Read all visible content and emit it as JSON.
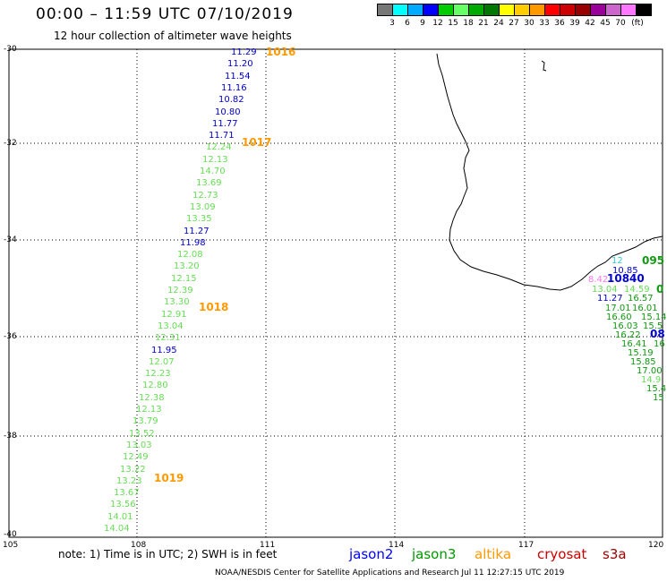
{
  "title": "00:00 – 11:59 UTC 07/10/2019",
  "subtitle": "12 hour collection of altimeter wave heights",
  "legend": {
    "unit": "(ft)",
    "items": [
      {
        "label": "",
        "color": "#777777"
      },
      {
        "label": "3",
        "color": "#00ffff"
      },
      {
        "label": "6",
        "color": "#00aaff"
      },
      {
        "label": "9",
        "color": "#0000ff"
      },
      {
        "label": "12",
        "color": "#00cc00"
      },
      {
        "label": "15",
        "color": "#66ff66"
      },
      {
        "label": "18",
        "color": "#00aa00"
      },
      {
        "label": "21",
        "color": "#007700"
      },
      {
        "label": "24",
        "color": "#ffff00"
      },
      {
        "label": "27",
        "color": "#ffcc00"
      },
      {
        "label": "30",
        "color": "#ff9900"
      },
      {
        "label": "33",
        "color": "#ff0000"
      },
      {
        "label": "36",
        "color": "#cc0000"
      },
      {
        "label": "39",
        "color": "#990000"
      },
      {
        "label": "42",
        "color": "#990099"
      },
      {
        "label": "45",
        "color": "#cc66cc"
      },
      {
        "label": "70",
        "color": "#ff77ff"
      },
      {
        "label": "",
        "color": "#000000"
      }
    ]
  },
  "axes": {
    "lat_labels": [
      "-30",
      "-32",
      "-34",
      "-36",
      "-38",
      "-40"
    ],
    "lon_labels": [
      "105",
      "108",
      "111",
      "114",
      "117",
      "120"
    ]
  },
  "pressures": [
    "1016",
    "1017",
    "1018",
    "1019"
  ],
  "west_track": [
    {
      "v": "11.29",
      "s": "blue"
    },
    {
      "v": "11.20",
      "s": "blue"
    },
    {
      "v": "11.54",
      "s": "blue"
    },
    {
      "v": "11.16",
      "s": "blue"
    },
    {
      "v": "10.82",
      "s": "blue"
    },
    {
      "v": "10.80",
      "s": "blue"
    },
    {
      "v": "11.77",
      "s": "blue"
    },
    {
      "v": "11.71",
      "s": "blue"
    },
    {
      "v": "12.24",
      "s": "lgreen"
    },
    {
      "v": "12.13",
      "s": "lgreen"
    },
    {
      "v": "14.70",
      "s": "lgreen"
    },
    {
      "v": "13.69",
      "s": "lgreen"
    },
    {
      "v": "12.73",
      "s": "lgreen"
    },
    {
      "v": "13.09",
      "s": "lgreen"
    },
    {
      "v": "13.35",
      "s": "lgreen"
    },
    {
      "v": "11.27",
      "s": "blue"
    },
    {
      "v": "11.98",
      "s": "blue"
    },
    {
      "v": "12.08",
      "s": "lgreen"
    },
    {
      "v": "13.20",
      "s": "lgreen"
    },
    {
      "v": "12.15",
      "s": "lgreen"
    },
    {
      "v": "12.39",
      "s": "lgreen"
    },
    {
      "v": "13.30",
      "s": "lgreen"
    },
    {
      "v": "12.91",
      "s": "lgreen"
    },
    {
      "v": "13.04",
      "s": "lgreen"
    },
    {
      "v": "12.31",
      "s": "lgreen"
    },
    {
      "v": "11.95",
      "s": "blue"
    },
    {
      "v": "12.07",
      "s": "lgreen"
    },
    {
      "v": "12.23",
      "s": "lgreen"
    },
    {
      "v": "12.80",
      "s": "lgreen"
    },
    {
      "v": "12.38",
      "s": "lgreen"
    },
    {
      "v": "12.13",
      "s": "lgreen"
    },
    {
      "v": "13.79",
      "s": "lgreen"
    },
    {
      "v": "13.52",
      "s": "lgreen"
    },
    {
      "v": "13.03",
      "s": "lgreen"
    },
    {
      "v": "12.49",
      "s": "lgreen"
    },
    {
      "v": "13.22",
      "s": "lgreen"
    },
    {
      "v": "13.23",
      "s": "lgreen"
    },
    {
      "v": "13.67",
      "s": "lgreen"
    },
    {
      "v": "13.56",
      "s": "lgreen"
    },
    {
      "v": "14.01",
      "s": "lgreen"
    },
    {
      "v": "14.04",
      "s": "lgreen"
    }
  ],
  "east_cluster": [
    {
      "v": "095",
      "s": "dgreen"
    },
    {
      "v": "10.85",
      "s": "blue"
    },
    {
      "v": "10840",
      "s": "blue"
    },
    {
      "v": "8.42",
      "s": "pink"
    },
    {
      "v": "13.04",
      "s": "lgreen"
    },
    {
      "v": "14.59",
      "s": "lgreen"
    },
    {
      "v": "0",
      "s": "dgreen"
    },
    {
      "v": "11.27",
      "s": "blue"
    },
    {
      "v": "16.57",
      "s": "dgreen"
    },
    {
      "v": "17.01",
      "s": "dgreen"
    },
    {
      "v": "16.01",
      "s": "dgreen"
    },
    {
      "v": "16.60",
      "s": "dgreen"
    },
    {
      "v": "15.14",
      "s": "dgreen"
    },
    {
      "v": "16.03",
      "s": "dgreen"
    },
    {
      "v": "15.5",
      "s": "dgreen"
    },
    {
      "v": "16.22",
      "s": "dgreen"
    },
    {
      "v": "16.41",
      "s": "dgreen"
    },
    {
      "v": "15.19",
      "s": "dgreen"
    },
    {
      "v": "15.85",
      "s": "dgreen"
    },
    {
      "v": "17.00",
      "s": "dgreen"
    },
    {
      "v": "14.9",
      "s": "lgreen"
    },
    {
      "v": "15.4",
      "s": "dgreen"
    },
    {
      "v": "15",
      "s": "dgreen"
    },
    {
      "v": "16",
      "s": "dgreen"
    },
    {
      "v": "12",
      "s": "cyan"
    },
    {
      "v": "08",
      "s": "blue"
    }
  ],
  "note": "note:  1) Time is in UTC;  2) SWH is in feet",
  "satellites": [
    {
      "name": "jason2",
      "color": "#0000ff"
    },
    {
      "name": "jason3",
      "color": "#009900"
    },
    {
      "name": "altika",
      "color": "#ff9900"
    },
    {
      "name": "cryosat",
      "color": "#cc0000"
    },
    {
      "name": "s3a",
      "color": "#990000"
    }
  ],
  "footer": "NOAA/NESDIS Center for Satellite Applications and Research    Jul 11 12:27:15 UTC 2019"
}
